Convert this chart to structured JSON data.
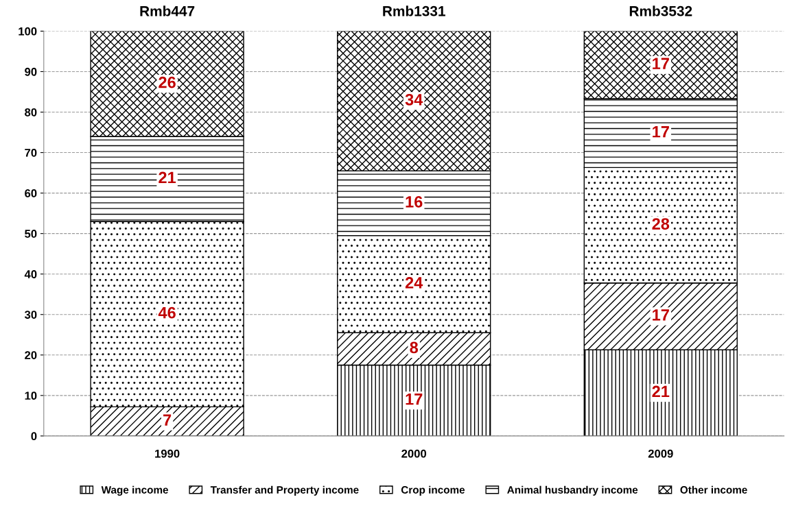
{
  "chart_data": {
    "type": "bar",
    "stacked": true,
    "categories": [
      "1990",
      "2000",
      "2009"
    ],
    "series": [
      {
        "name": "Wage income",
        "values": [
          0,
          17.5,
          21.3
        ],
        "value_labels": [
          null,
          "17",
          "21"
        ]
      },
      {
        "name": "Transfer and Property income",
        "values": [
          7.2,
          8,
          16.5
        ],
        "value_labels": [
          "7",
          "8",
          "17"
        ]
      },
      {
        "name": "Crop income",
        "values": [
          45.8,
          24,
          28.5
        ],
        "value_labels": [
          "46",
          "24",
          "28"
        ]
      },
      {
        "name": "Animal husbandry income",
        "values": [
          21,
          16,
          17
        ],
        "value_labels": [
          "21",
          "16",
          "17"
        ]
      },
      {
        "name": "Other income",
        "values": [
          26,
          34.5,
          16.7
        ],
        "value_labels": [
          "26",
          "34",
          "17"
        ]
      }
    ],
    "totals": [
      "Rmb447",
      "Rmb1331",
      "Rmb3532"
    ],
    "ylim": [
      0,
      100
    ],
    "yticks": [
      0,
      10,
      20,
      30,
      40,
      50,
      60,
      70,
      80,
      90,
      100
    ],
    "grid": "y",
    "legend": "bottom"
  }
}
